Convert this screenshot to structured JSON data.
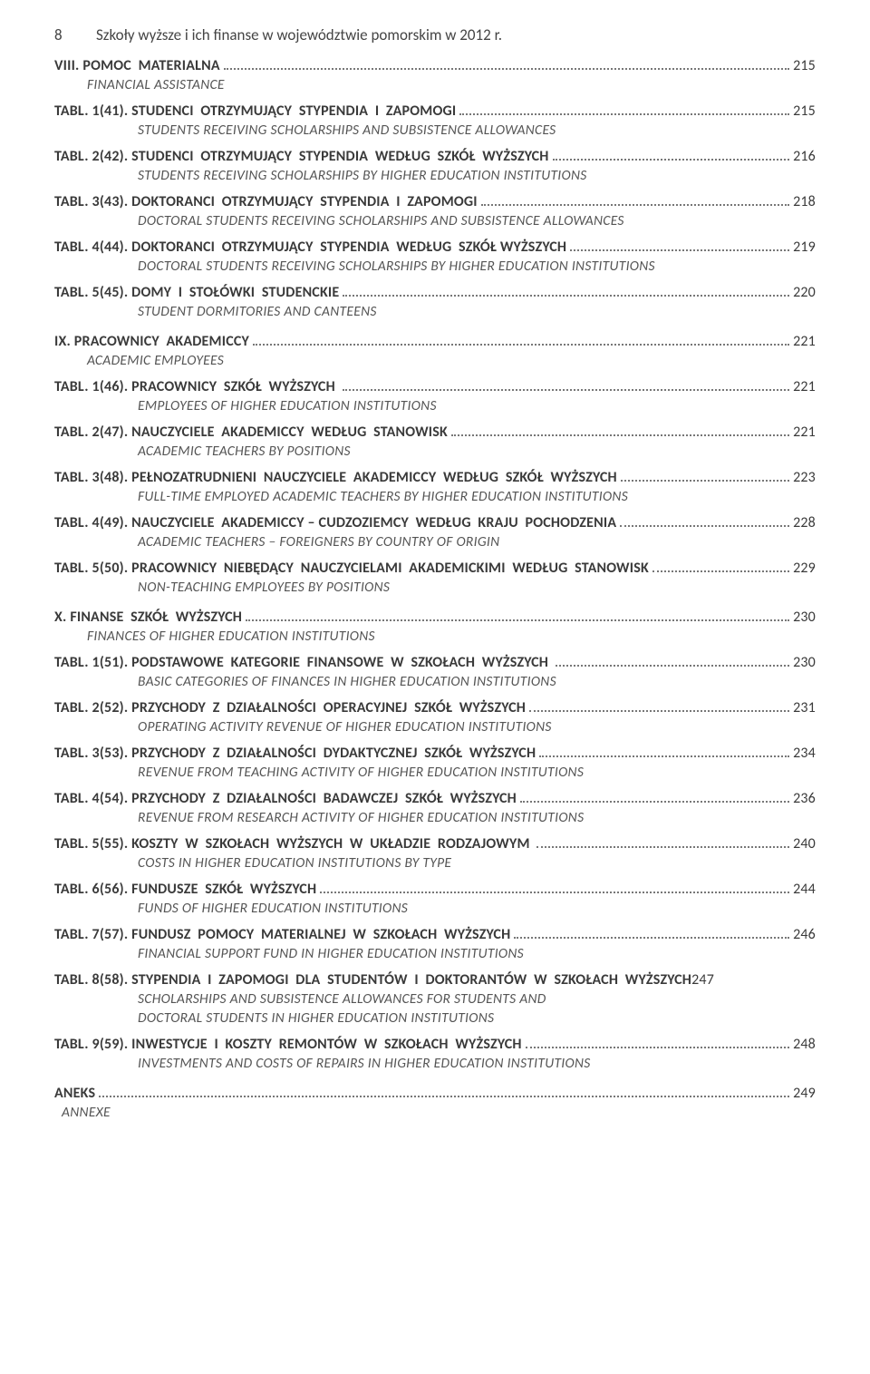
{
  "header": {
    "page_no": "8",
    "running_title": "Szkoły wyższe i ich finanse w województwie pomorskim w 2012 r."
  },
  "sections": [
    {
      "label": "VIII.",
      "title": "POMOC  MATERIALNA",
      "page": "215",
      "subtitle": "FINANCIAL  ASSISTANCE",
      "entries": [
        {
          "tabl": "TABL. 1(41). ",
          "title": "STUDENCI  OTRZYMUJĄCY  STYPENDIA  I  ZAPOMOGI",
          "page": "215",
          "sub": "STUDENTS  RECEIVING  SCHOLARSHIPS  AND  SUBSISTENCE  ALLOWANCES"
        },
        {
          "tabl": "TABL. 2(42). ",
          "title": "STUDENCI  OTRZYMUJĄCY  STYPENDIA  WEDŁUG  SZKÓŁ  WYŻSZYCH",
          "page": "216",
          "sub": "STUDENTS  RECEIVING  SCHOLARSHIPS  BY  HIGHER  EDUCATION  INSTITUTIONS"
        },
        {
          "tabl": "TABL. 3(43). ",
          "title": "DOKTORANCI  OTRZYMUJĄCY  STYPENDIA  I  ZAPOMOGI",
          "page": "218",
          "sub": "DOCTORAL  STUDENTS  RECEIVING  SCHOLARSHIPS  AND  SUBSISTENCE  ALLOWANCES"
        },
        {
          "tabl": "TABL. 4(44). ",
          "title": "DOKTORANCI  OTRZYMUJĄCY  STYPENDIA  WEDŁUG  SZKÓŁ WYŻSZYCH",
          "page": "219",
          "sub": "DOCTORAL  STUDENTS   RECEIVING  SCHOLARSHIPS  BY  HIGHER  EDUCATION  INSTITUTIONS"
        },
        {
          "tabl": "TABL. 5(45). ",
          "title": "DOMY  I  STOŁÓWKI  STUDENCKIE",
          "page": "220",
          "sub": "STUDENT  DORMITORIES  AND  CANTEENS"
        }
      ]
    },
    {
      "label": "IX.",
      "title": "PRACOWNICY  AKADEMICCY",
      "page": "221",
      "subtitle": "ACADEMIC  EMPLOYEES",
      "entries": [
        {
          "tabl": "TABL. 1(46). ",
          "title": "PRACOWNICY  SZKÓŁ  WYŻSZYCH ",
          "page": "221",
          "sub": "EMPLOYEES  OF  HIGHER  EDUCATION  INSTITUTIONS"
        },
        {
          "tabl": "TABL. 2(47). ",
          "title": "NAUCZYCIELE  AKADEMICCY  WEDŁUG  STANOWISK",
          "page": "221",
          "sub": "ACADEMIC  TEACHERS  BY  POSITIONS"
        },
        {
          "tabl": "TABL. 3(48). ",
          "title": "PEŁNOZATRUDNIENI  NAUCZYCIELE  AKADEMICCY  WEDŁUG  SZKÓŁ  WYŻSZYCH",
          "page": "223",
          "sub": "FULL-TIME  EMPLOYED  ACADEMIC  TEACHERS  BY  HIGHER  EDUCATION  INSTITUTIONS"
        },
        {
          "tabl": "TABL. 4(49). ",
          "title": "NAUCZYCIELE  AKADEMICCY – CUDZOZIEMCY  WEDŁUG  KRAJU  POCHODZENIA",
          "page": "228",
          "sub": "ACADEMIC  TEACHERS – FOREIGNERS  BY  COUNTRY  OF  ORIGIN"
        },
        {
          "tabl": "TABL. 5(50). ",
          "title": "PRACOWNICY  NIEBĘDĄCY  NAUCZYCIELAMI  AKADEMICKIMI  WEDŁUG  STANOWISK",
          "page": "229",
          "sub": "NON-TEACHING  EMPLOYEES  BY  POSITIONS"
        }
      ]
    },
    {
      "label": "X.",
      "title": "FINANSE  SZKÓŁ  WYŻSZYCH",
      "page": "230",
      "subtitle": "FINANCES  OF  HIGHER  EDUCATION  INSTITUTIONS",
      "entries": [
        {
          "tabl": "TABL. 1(51). ",
          "title": "PODSTAWOWE  KATEGORIE  FINANSOWE  W  SZKOŁACH  WYŻSZYCH ",
          "page": "230",
          "sub": "BASIC  CATEGORIES  OF  FINANCES  IN  HIGHER  EDUCATION  INSTITUTIONS"
        },
        {
          "tabl": "TABL. 2(52). ",
          "title": "PRZYCHODY  Z  DZIAŁALNOŚCI  OPERACYJNEJ  SZKÓŁ  WYŻSZYCH",
          "page": "231",
          "sub": "OPERATING  ACTIVITY  REVENUE  OF  HIGHER  EDUCATION  INSTITUTIONS"
        },
        {
          "tabl": "TABL. 3(53). ",
          "title": "PRZYCHODY  Z  DZIAŁALNOŚCI  DYDAKTYCZNEJ  SZKÓŁ  WYŻSZYCH",
          "page": "234",
          "sub": "REVENUE  FROM  TEACHING  ACTIVITY  OF  HIGHER  EDUCATION  INSTITUTIONS"
        },
        {
          "tabl": "TABL. 4(54). ",
          "title": "PRZYCHODY  Z  DZIAŁALNOŚCI  BADAWCZEJ  SZKÓŁ  WYŻSZYCH",
          "page": "236",
          "sub": "REVENUE  FROM  RESEARCH  ACTIVITY  OF  HIGHER  EDUCATION  INSTITUTIONS"
        },
        {
          "tabl": "TABL. 5(55). ",
          "title": "KOSZTY  W  SZKOŁACH  WYŻSZYCH  W  UKŁADZIE  RODZAJOWYM ",
          "page": "240",
          "sub": "COSTS  IN  HIGHER  EDUCATION  INSTITUTIONS  BY  TYPE"
        },
        {
          "tabl": "TABL. 6(56). ",
          "title": "FUNDUSZE  SZKÓŁ  WYŻSZYCH",
          "page": "244",
          "sub": "FUNDS  OF  HIGHER  EDUCATION  INSTITUTIONS"
        },
        {
          "tabl": "TABL. 7(57). ",
          "title": "FUNDUSZ  POMOCY  MATERIALNEJ  W  SZKOŁACH  WYŻSZYCH",
          "page": "246",
          "sub": "FINANCIAL  SUPPORT  FUND  IN  HIGHER  EDUCATION  INSTITUTIONS"
        },
        {
          "tabl": "TABL. 8(58). ",
          "title": "STYPENDIA  I  ZAPOMOGI  DLA  STUDENTÓW  I  DOKTORANTÓW  W  SZKOŁACH  WYŻSZYCH",
          "page": "247",
          "nodots": true,
          "sub": "SCHOLARSHIPS  AND  SUBSISTENCE  ALLOWANCES  FOR  STUDENTS  AND",
          "sub2": "DOCTORAL  STUDENTS  IN  HIGHER  EDUCATION  INSTITUTIONS"
        },
        {
          "tabl": "TABL. 9(59). ",
          "title": "INWESTYCJE  I  KOSZTY  REMONTÓW  W  SZKOŁACH  WYŻSZYCH",
          "page": "248",
          "sub": "INVESTMENTS  AND  COSTS  OF  REPAIRS  IN  HIGHER  EDUCATION  INSTITUTIONS"
        }
      ]
    }
  ],
  "annex": {
    "title": "ANEKS",
    "page": "249",
    "subtitle": "ANNEXE"
  }
}
